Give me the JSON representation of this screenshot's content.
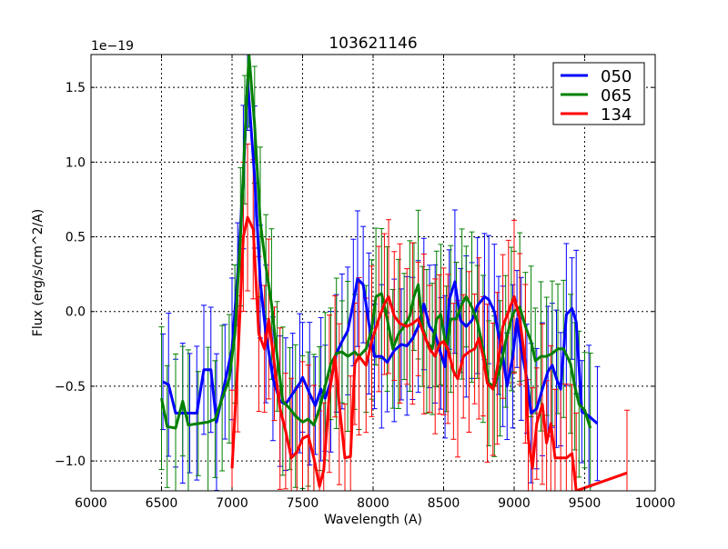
{
  "chart_data": {
    "type": "line",
    "title": "103621146",
    "xlabel": "Wavelength (A)",
    "ylabel": "Flux (erg/s/cm^2/A)",
    "offset_text": "1e−19",
    "xlim": [
      6000,
      10000
    ],
    "ylim": [
      -1.2,
      1.72
    ],
    "xticks": [
      6000,
      6500,
      7000,
      7500,
      8000,
      8500,
      9000,
      9500,
      10000
    ],
    "xtick_labels": [
      "6000",
      "6500",
      "7000",
      "7500",
      "8000",
      "8500",
      "9000",
      "9500",
      "10000"
    ],
    "yticks": [
      -1.0,
      -0.5,
      0.0,
      0.5,
      1.0,
      1.5
    ],
    "ytick_labels": [
      "−1.0",
      "−0.5",
      "0.0",
      "0.5",
      "1.0",
      "1.5"
    ],
    "grid": true,
    "legend_position": "top-right",
    "series": [
      {
        "name": "050",
        "color": "#0000ff",
        "yerr": 0.4,
        "x": [
          6510,
          6550,
          6600,
          6650,
          6700,
          6750,
          6800,
          6850,
          6890,
          6950,
          7000,
          7040,
          7080,
          7110,
          7160,
          7200,
          7240,
          7290,
          7340,
          7380,
          7430,
          7480,
          7500,
          7550,
          7590,
          7630,
          7660,
          7700,
          7740,
          7780,
          7820,
          7860,
          7890,
          7930,
          7970,
          8010,
          8060,
          8100,
          8150,
          8200,
          8240,
          8280,
          8320,
          8360,
          8400,
          8440,
          8480,
          8510,
          8540,
          8580,
          8620,
          8660,
          8700,
          8740,
          8790,
          8820,
          8860,
          8890,
          8920,
          8950,
          8990,
          9020,
          9050,
          9090,
          9120,
          9160,
          9200,
          9240,
          9270,
          9300,
          9330,
          9370,
          9410,
          9440,
          9480,
          9530,
          9590
        ],
        "y": [
          -0.47,
          -0.49,
          -0.68,
          -0.68,
          -0.68,
          -0.68,
          -0.39,
          -0.39,
          -0.74,
          -0.47,
          -0.25,
          0.25,
          0.9,
          1.55,
          0.9,
          0.2,
          -0.15,
          -0.45,
          -0.6,
          -0.62,
          -0.55,
          -0.48,
          -0.44,
          -0.55,
          -0.63,
          -0.52,
          -0.58,
          -0.47,
          -0.28,
          -0.2,
          -0.13,
          0.06,
          0.22,
          0.18,
          -0.08,
          -0.3,
          -0.3,
          -0.34,
          -0.26,
          -0.22,
          -0.23,
          -0.18,
          -0.1,
          0.05,
          -0.1,
          -0.15,
          -0.28,
          -0.37,
          0.08,
          0.2,
          -0.06,
          -0.1,
          -0.06,
          0.04,
          0.1,
          0.08,
          0.0,
          -0.16,
          -0.3,
          -0.5,
          -0.3,
          -0.05,
          -0.25,
          -0.45,
          -0.68,
          -0.65,
          -0.52,
          -0.4,
          -0.36,
          -0.45,
          -0.52,
          -0.02,
          0.02,
          -0.07,
          -0.67,
          -0.7,
          -0.75
        ]
      },
      {
        "name": "065",
        "color": "#008000",
        "yerr": 0.42,
        "x": [
          6500,
          6540,
          6600,
          6650,
          6690,
          6760,
          6830,
          6880,
          6930,
          6980,
          7020,
          7060,
          7090,
          7120,
          7160,
          7200,
          7240,
          7280,
          7320,
          7360,
          7410,
          7450,
          7500,
          7540,
          7580,
          7620,
          7660,
          7700,
          7740,
          7780,
          7820,
          7870,
          7900,
          7950,
          7990,
          8020,
          8060,
          8100,
          8140,
          8180,
          8220,
          8260,
          8290,
          8320,
          8350,
          8380,
          8420,
          8450,
          8480,
          8520,
          8550,
          8590,
          8630,
          8660,
          8700,
          8740,
          8780,
          8820,
          8860,
          8900,
          8940,
          8980,
          9000,
          9040,
          9080,
          9120,
          9150,
          9190,
          9230,
          9270,
          9310,
          9350,
          9400,
          9430,
          9460,
          9500,
          9540
        ],
        "y": [
          -0.58,
          -0.77,
          -0.78,
          -0.6,
          -0.76,
          -0.75,
          -0.74,
          -0.72,
          -0.58,
          -0.45,
          -0.15,
          0.5,
          1.15,
          1.72,
          1.25,
          0.6,
          0.3,
          0.05,
          -0.3,
          -0.6,
          -0.65,
          -0.7,
          -0.74,
          -0.72,
          -0.76,
          -0.65,
          -0.5,
          -0.35,
          -0.28,
          -0.27,
          -0.3,
          -0.27,
          -0.3,
          -0.25,
          -0.12,
          0.1,
          0.12,
          -0.05,
          -0.25,
          -0.15,
          -0.1,
          -0.03,
          0.1,
          0.18,
          -0.1,
          -0.2,
          -0.25,
          -0.05,
          -0.02,
          -0.25,
          -0.05,
          -0.05,
          0.05,
          0.1,
          0.03,
          -0.07,
          -0.25,
          -0.48,
          -0.5,
          -0.38,
          -0.2,
          -0.05,
          0.0,
          0.03,
          -0.1,
          -0.2,
          -0.33,
          -0.3,
          -0.3,
          -0.28,
          -0.25,
          -0.25,
          -0.35,
          -0.5,
          -0.62,
          -0.66,
          -0.78
        ]
      },
      {
        "name": "134",
        "color": "#ff0000",
        "yerr": 0.45,
        "x": [
          7000,
          7040,
          7080,
          7110,
          7150,
          7190,
          7230,
          7260,
          7300,
          7340,
          7380,
          7420,
          7460,
          7500,
          7540,
          7580,
          7620,
          7650,
          7690,
          7730,
          7760,
          7800,
          7840,
          7870,
          7900,
          7950,
          7990,
          8040,
          8080,
          8110,
          8150,
          8190,
          8240,
          8280,
          8320,
          8360,
          8400,
          8440,
          8470,
          8500,
          8530,
          8570,
          8600,
          8640,
          8680,
          8720,
          8750,
          8780,
          8810,
          8850,
          8880,
          8920,
          8960,
          9000,
          9040,
          9080,
          9100,
          9130,
          9160,
          9200,
          9230,
          9260,
          9290,
          9330,
          9370,
          9410,
          9440,
          9800
        ],
        "y": [
          -1.05,
          -0.35,
          0.5,
          0.63,
          0.55,
          -0.15,
          -0.25,
          -0.05,
          -0.35,
          -0.65,
          -0.8,
          -0.98,
          -0.94,
          -0.85,
          -0.83,
          -0.98,
          -1.17,
          -1.06,
          -0.55,
          -0.3,
          -0.62,
          -0.98,
          -0.97,
          -0.35,
          -0.3,
          -0.36,
          -0.2,
          -0.05,
          0.05,
          0.1,
          -0.03,
          -0.08,
          -0.1,
          -0.08,
          -0.05,
          -0.15,
          -0.25,
          -0.3,
          -0.22,
          -0.2,
          -0.25,
          -0.4,
          -0.45,
          -0.3,
          -0.27,
          -0.25,
          -0.18,
          -0.3,
          -0.48,
          -0.52,
          -0.38,
          -0.1,
          0.0,
          0.1,
          -0.05,
          -0.35,
          -0.85,
          -1.05,
          -0.75,
          -0.62,
          -0.88,
          -0.75,
          -0.98,
          -0.98,
          -0.98,
          -0.95,
          -1.2,
          -1.08
        ]
      }
    ]
  }
}
